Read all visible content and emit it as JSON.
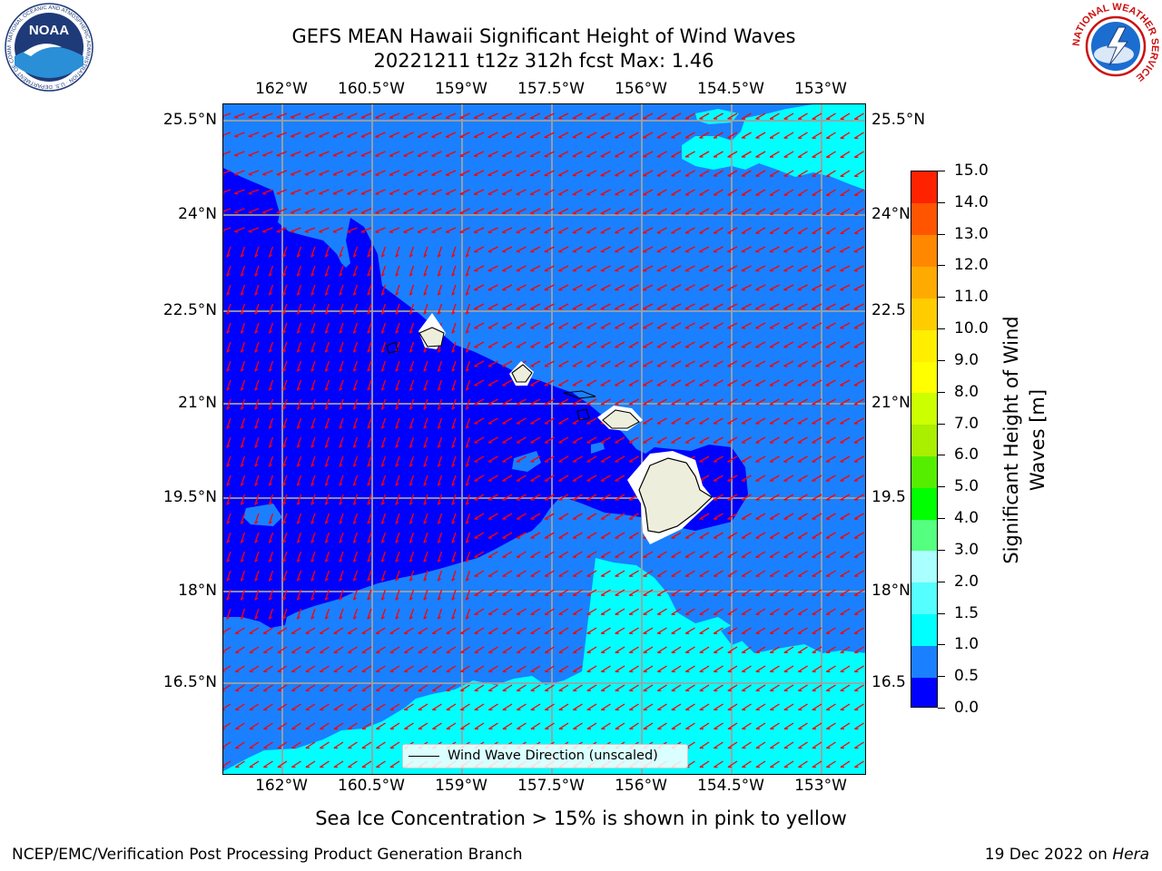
{
  "title": {
    "line1": "GEFS MEAN Hawaii Significant Height of Wind Waves",
    "line2": "20221211 t12z 312h fcst   Max: 1.46"
  },
  "map": {
    "lon_labels": [
      "162°W",
      "160.5°W",
      "159°W",
      "157.5°W",
      "156°W",
      "154.5°W",
      "153°W"
    ],
    "lat_labels": [
      "25.5°N",
      "24°N",
      "22.5°N",
      "21°N",
      "19.5°N",
      "18°N",
      "16.5°N"
    ],
    "lat_labels_right": [
      "25.5°N",
      "24°N",
      "22.5",
      "21°N",
      "19.5",
      "18°N",
      "16.5"
    ],
    "legend_label": "Wind Wave Direction (unscaled)",
    "arrow_color": "#ff0000",
    "land_color": "#eeeedc",
    "ocean_colors": {
      "0.0-0.5": "#0000ff",
      "0.5-1.0": "#1a80ff",
      "1.0-1.5": "#00ffff"
    }
  },
  "colorbar": {
    "title_line1": "Significant Height of Wind",
    "title_line2": "Waves [m]",
    "tick_labels": [
      "0.0",
      "0.5",
      "1.0",
      "1.5",
      "2.0",
      "3.0",
      "4.0",
      "5.0",
      "6.0",
      "7.0",
      "8.0",
      "9.0",
      "10.0",
      "11.0",
      "12.0",
      "13.0",
      "14.0",
      "15.0"
    ],
    "colors": [
      "#0000ff",
      "#1a80ff",
      "#00ffff",
      "#55ffff",
      "#aaffff",
      "#55ff80",
      "#00ff00",
      "#55ee00",
      "#aaee00",
      "#ccff00",
      "#ffff00",
      "#ffee00",
      "#ffcc00",
      "#ffaa00",
      "#ff8800",
      "#ff5500",
      "#ff2200"
    ]
  },
  "footer": {
    "note": "Sea Ice Concentration > 15% is shown in pink to yellow",
    "left": "NCEP/EMC/Verification Post Processing Product Generation Branch",
    "right_prefix": "19 Dec 2022 on ",
    "right_machine": "Hera"
  },
  "logos": {
    "noaa_text": "NOAA",
    "noaa_ring_text": "NATIONAL OCEANIC AND ATMOSPHERIC ADMINISTRATION · U.S. DEPARTMENT OF COMMERCE",
    "nws_ring_text": "NATIONAL WEATHER SERVICE"
  }
}
